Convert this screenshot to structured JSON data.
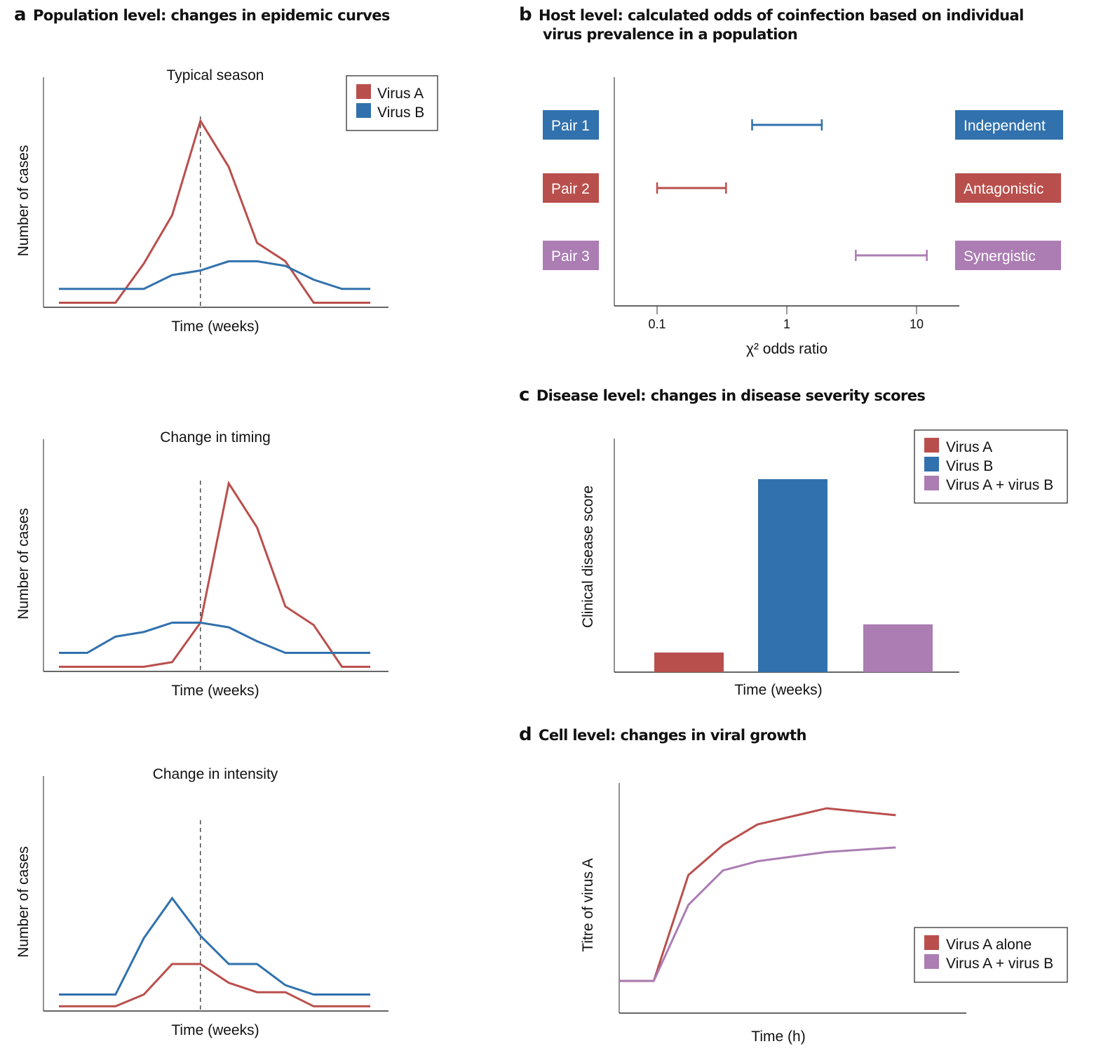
{
  "panels": {
    "a": {
      "letter": "a",
      "title": "Population level: changes in epidemic curves"
    },
    "b": {
      "letter": "b",
      "title_line1": "Host level: calculated odds of coinfection based on individual",
      "title_line2": "virus prevalence in a population"
    },
    "c": {
      "letter": "c",
      "title": "Disease level: changes in disease severity scores"
    },
    "d": {
      "letter": "d",
      "title": "Cell level: changes in viral growth"
    }
  },
  "colors": {
    "virus_a": "#b94f4c",
    "virus_b": "#3171ad",
    "combo": "#ab7db3",
    "axis": "#555555"
  },
  "chart_data": [
    {
      "id": "a1",
      "type": "line",
      "title": "Typical season",
      "xlabel": "Time (weeks)",
      "ylabel": "Number of cases",
      "x": [
        0,
        1,
        2,
        3,
        4,
        5,
        6,
        7,
        8,
        9,
        10,
        11
      ],
      "ylim": [
        0,
        1
      ],
      "reference_line_x": 5,
      "legend": {
        "entries": [
          "Virus A",
          "Virus B"
        ],
        "placement": "top-right"
      },
      "series": [
        {
          "name": "Virus A",
          "color_key": "virus_a",
          "x": [
            0,
            2,
            3,
            4,
            5,
            6,
            7,
            8,
            9,
            10,
            11
          ],
          "values": [
            0.02,
            0.02,
            0.19,
            0.4,
            0.81,
            0.61,
            0.28,
            0.2,
            0.02,
            0.02,
            0.02
          ]
        },
        {
          "name": "Virus B",
          "color_key": "virus_b",
          "x": [
            0,
            3,
            4,
            5,
            6,
            7,
            8,
            9,
            10,
            11
          ],
          "values": [
            0.08,
            0.08,
            0.14,
            0.16,
            0.2,
            0.2,
            0.18,
            0.12,
            0.08,
            0.08
          ]
        }
      ]
    },
    {
      "id": "a2",
      "type": "line",
      "title": "Change in timing",
      "xlabel": "Time (weeks)",
      "ylabel": "Number of cases",
      "ylim": [
        0,
        1
      ],
      "reference_line_x": 5,
      "series": [
        {
          "name": "Virus A",
          "color_key": "virus_a",
          "x": [
            0,
            1,
            2,
            3,
            4,
            5,
            6,
            7,
            8,
            9,
            10,
            11
          ],
          "values": [
            0.02,
            0.02,
            0.02,
            0.02,
            0.04,
            0.21,
            0.81,
            0.62,
            0.28,
            0.2,
            0.02,
            0.02
          ]
        },
        {
          "name": "Virus B",
          "color_key": "virus_b",
          "x": [
            0,
            1,
            2,
            3,
            4,
            5,
            6,
            7,
            8,
            9,
            10,
            11
          ],
          "values": [
            0.08,
            0.08,
            0.15,
            0.17,
            0.21,
            0.21,
            0.19,
            0.13,
            0.08,
            0.08,
            0.08,
            0.08
          ]
        }
      ]
    },
    {
      "id": "a3",
      "type": "line",
      "title": "Change in intensity",
      "xlabel": "Time (weeks)",
      "ylabel": "Number of cases",
      "ylim": [
        0,
        1
      ],
      "reference_line_x": 5,
      "series": [
        {
          "name": "Virus A",
          "color_key": "virus_a",
          "x": [
            0,
            2,
            3,
            4,
            5,
            6,
            7,
            8,
            9,
            10,
            11
          ],
          "values": [
            0.02,
            0.02,
            0.07,
            0.2,
            0.2,
            0.12,
            0.08,
            0.08,
            0.02,
            0.02,
            0.02
          ]
        },
        {
          "name": "Virus B",
          "color_key": "virus_b",
          "x": [
            0,
            2,
            3,
            4,
            5,
            6,
            7,
            8,
            9,
            10,
            11
          ],
          "values": [
            0.07,
            0.07,
            0.31,
            0.48,
            0.32,
            0.2,
            0.2,
            0.11,
            0.07,
            0.07,
            0.07
          ]
        }
      ]
    },
    {
      "id": "b",
      "type": "interval",
      "xscale": "log",
      "xlabel": "χ² odds ratio",
      "xticks": [
        0.1,
        1,
        10
      ],
      "xtick_labels": [
        "0.1",
        "1",
        "10"
      ],
      "xlim": [
        0.05,
        20
      ],
      "rows": [
        {
          "pair": "Pair 1",
          "low": 0.54,
          "high": 1.86,
          "result": "Independent",
          "color_key": "virus_b"
        },
        {
          "pair": "Pair 2",
          "low": 0.1,
          "high": 0.34,
          "result": "Antagonistic",
          "color_key": "virus_a"
        },
        {
          "pair": "Pair 3",
          "low": 3.4,
          "high": 12,
          "result": "Synergistic",
          "color_key": "combo"
        }
      ]
    },
    {
      "id": "c",
      "type": "bar",
      "xlabel": "Time (weeks)",
      "ylabel": "Clinical disease score",
      "ylim": [
        0,
        1
      ],
      "categories": [
        "Virus A",
        "Virus B",
        "Virus A + virus B"
      ],
      "values": [
        0.085,
        0.836,
        0.207
      ],
      "color_keys": [
        "virus_a",
        "virus_b",
        "combo"
      ],
      "legend": {
        "entries": [
          "Virus A",
          "Virus B",
          "Virus A + virus B"
        ],
        "placement": "top-right"
      }
    },
    {
      "id": "d",
      "type": "line",
      "xlabel": "Time (h)",
      "ylabel": "Titre of virus A",
      "ylim": [
        0,
        1
      ],
      "x": [
        0,
        1,
        2,
        3,
        4,
        6,
        8
      ],
      "legend": {
        "entries": [
          "Virus A alone",
          "Virus A + virus B"
        ],
        "placement": "bottom-right"
      },
      "series": [
        {
          "name": "Virus A alone",
          "color_key": "virus_a",
          "values": [
            0.14,
            0.14,
            0.6,
            0.73,
            0.82,
            0.89,
            0.86
          ]
        },
        {
          "name": "Virus A + virus B",
          "color_key": "combo",
          "values": [
            0.14,
            0.14,
            0.47,
            0.62,
            0.66,
            0.7,
            0.72
          ]
        }
      ]
    }
  ]
}
